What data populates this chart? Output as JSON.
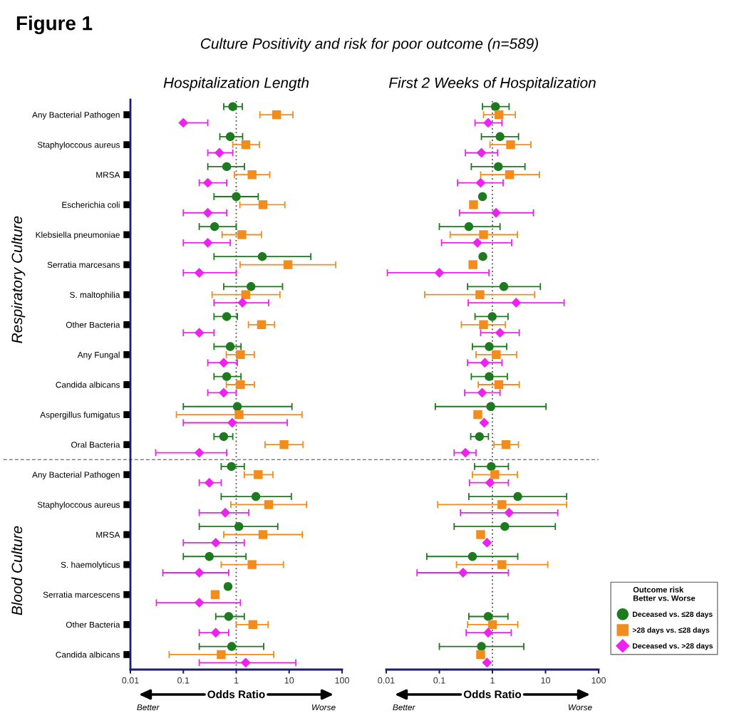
{
  "chart_data": [
    {
      "type": "scatter",
      "orientation": "horizontal",
      "title": "Hospitalization Length",
      "xlabel": "Odds Ratio",
      "log": "x",
      "xlim": [
        0.01,
        100
      ],
      "xticks": [
        0.01,
        0.1,
        1,
        10,
        100
      ],
      "grid": false,
      "legend": false,
      "annotations": [
        "Figure 1",
        "Culture Positivity and risk for poor outcome (n=589)",
        "Respiratory Culture",
        "Blood Culture",
        "Better",
        "Worse"
      ],
      "categories": [
        "Any Bacterial Pathogen",
        "Staphyloccous aureus",
        "MRSA",
        "Escherichia coli",
        "Klebsiella pneumoniae",
        "Serratia marcesans",
        "S. maltophilia",
        "Other Bacteria",
        "Any Fungal",
        "Candida albicans",
        "Aspergillus fumigatus",
        "Oral Bacteria",
        "Any Bacterial Pathogen",
        "Staphyloccous aureus",
        "MRSA",
        "S. haemolyticus",
        "Serratia marcescens",
        "Other Bacteria",
        "Candida albicans"
      ],
      "ref_lines": [
        {
          "axis": "x",
          "value": 1,
          "color": "#555555",
          "line_style": "dotted"
        }
      ],
      "series": [
        {
          "color": "#1e7a1e",
          "marker": "circle",
          "values": [
            0.86,
            0.77,
            0.66,
            1.0,
            0.39,
            3.1,
            1.9,
            0.66,
            0.77,
            0.66,
            1.05,
            0.58,
            0.81,
            2.35,
            1.12,
            0.31,
            0.7,
            0.72,
            0.82
          ],
          "errors": [
            [
              0.58,
              1.3
            ],
            [
              0.49,
              1.32
            ],
            [
              0.29,
              1.43
            ],
            [
              0.38,
              2.6
            ],
            [
              0.2,
              1.0
            ],
            [
              0.38,
              25.7
            ],
            [
              0.58,
              7.5
            ],
            [
              0.38,
              1.05
            ],
            [
              0.38,
              1.23
            ],
            [
              0.38,
              1.23
            ],
            [
              0.1,
              11.3
            ],
            [
              0.38,
              0.86
            ],
            [
              0.52,
              1.42
            ],
            [
              0.52,
              11
            ],
            [
              0.2,
              6.1
            ],
            [
              0.1,
              1.53
            ],
            [
              0.63,
              0.7
            ],
            [
              0.41,
              1.42
            ],
            [
              0.2,
              3.3
            ]
          ]
        },
        {
          "color": "#f28c1c",
          "marker": "square",
          "values": [
            5.8,
            1.51,
            1.99,
            3.2,
            1.28,
            9.5,
            1.51,
            3.0,
            1.2,
            1.2,
            1.13,
            8.0,
            2.6,
            4.1,
            3.2,
            1.99,
            0.4,
            2.06,
            0.52
          ],
          "errors": [
            [
              2.8,
              11.8
            ],
            [
              0.86,
              2.74
            ],
            [
              0.92,
              4.3
            ],
            [
              1.17,
              8.3
            ],
            [
              0.54,
              3.0
            ],
            [
              1.18,
              76
            ],
            [
              0.35,
              6.7
            ],
            [
              1.7,
              5.3
            ],
            [
              0.65,
              2.2
            ],
            [
              0.65,
              2.2
            ],
            [
              0.074,
              17.5
            ],
            [
              3.5,
              18.3
            ],
            [
              1.42,
              4.95
            ],
            [
              0.79,
              21.3
            ],
            [
              0.58,
              17.7
            ],
            [
              0.52,
              7.8
            ],
            null,
            [
              1.0,
              4.0
            ],
            [
              0.054,
              5.1
            ]
          ]
        },
        {
          "color": "#ee22ee",
          "marker": "diamond",
          "values": [
            0.1,
            0.48,
            0.29,
            0.29,
            0.29,
            0.2,
            1.31,
            0.2,
            0.58,
            0.58,
            0.84,
            0.2,
            0.31,
            0.62,
            0.41,
            0.2,
            0.2,
            0.41,
            1.51
          ],
          "errors": [
            [
              0.1,
              0.29
            ],
            [
              0.29,
              0.86
            ],
            [
              0.2,
              0.66
            ],
            [
              0.1,
              0.66
            ],
            [
              0.1,
              0.77
            ],
            [
              0.1,
              1.0
            ],
            [
              0.38,
              4.1
            ],
            [
              0.1,
              0.38
            ],
            [
              0.29,
              1.05
            ],
            [
              0.29,
              1.0
            ],
            [
              0.1,
              9.2
            ],
            [
              0.03,
              0.66
            ],
            [
              0.2,
              0.52
            ],
            [
              0.2,
              1.73
            ],
            [
              0.1,
              1.42
            ],
            [
              0.041,
              0.72
            ],
            [
              0.031,
              1.2
            ],
            [
              0.2,
              0.72
            ],
            [
              0.2,
              13.4
            ]
          ]
        }
      ]
    },
    {
      "type": "scatter",
      "orientation": "horizontal",
      "title": "First 2 Weeks of Hospitalization",
      "xlabel": "Odds Ratio",
      "log": "x",
      "xlim": [
        0.01,
        100
      ],
      "xticks": [
        0.01,
        0.1,
        1,
        10,
        100
      ],
      "grid": false,
      "legend": "bottom right",
      "legend_title": "Outcome risk\nBetter vs. Worse",
      "tick_labels": "x",
      "annotations": [
        "Better",
        "Worse"
      ],
      "categories": [
        null,
        null,
        null,
        null,
        null,
        null,
        null,
        null,
        null,
        null,
        null,
        null,
        null,
        null,
        null,
        null,
        null,
        null,
        null
      ],
      "ref_lines": [
        {
          "axis": "x",
          "value": 1,
          "color": "#555555",
          "line_style": "dotted"
        }
      ],
      "series": [
        {
          "name": "Deceased vs. ≤28 days",
          "color": "#1e7a1e",
          "marker": "circle",
          "values": [
            1.14,
            1.39,
            1.29,
            0.65,
            0.36,
            0.66,
            1.64,
            0.99,
            0.87,
            0.87,
            0.93,
            0.57,
            0.95,
            3.0,
            1.71,
            0.42,
            null,
            0.83,
            0.62
          ],
          "errors": [
            [
              0.65,
              2.06
            ],
            [
              0.62,
              3.1
            ],
            [
              0.4,
              4.1
            ],
            null,
            [
              0.1,
              1.39
            ],
            null,
            [
              0.34,
              8.0
            ],
            [
              0.47,
              1.97
            ],
            [
              0.42,
              1.86
            ],
            [
              0.4,
              1.91
            ],
            [
              0.084,
              10.2
            ],
            [
              0.39,
              0.84
            ],
            [
              0.46,
              2.0
            ],
            [
              0.36,
              25
            ],
            [
              0.19,
              15.3
            ],
            [
              0.058,
              3.0
            ],
            null,
            [
              0.36,
              1.96
            ],
            [
              0.1,
              3.9
            ]
          ]
        },
        {
          "name": ">28 days vs. ≤28 days",
          "color": "#f28c1c",
          "marker": "square",
          "values": [
            1.33,
            2.2,
            2.1,
            0.44,
            0.68,
            0.43,
            0.58,
            0.68,
            1.18,
            1.32,
            0.53,
            1.8,
            1.11,
            1.51,
            0.6,
            1.51,
            null,
            1.0,
            0.6
          ],
          "errors": [
            [
              0.68,
              2.7
            ],
            [
              0.9,
              5.3
            ],
            [
              0.6,
              7.7
            ],
            null,
            [
              0.16,
              2.95
            ],
            null,
            [
              0.053,
              6.25
            ],
            [
              0.26,
              1.76
            ],
            [
              0.49,
              2.86
            ],
            [
              0.54,
              3.2
            ],
            null,
            [
              1.07,
              3.1
            ],
            [
              0.42,
              2.95
            ],
            [
              0.093,
              25
            ],
            null,
            [
              0.21,
              11
            ],
            null,
            [
              0.34,
              3.0
            ],
            null
          ]
        },
        {
          "name": "Deceased vs. >28 days",
          "color": "#ee22ee",
          "marker": "diamond",
          "values": [
            0.83,
            0.62,
            0.6,
            1.17,
            0.52,
            0.1,
            2.8,
            1.39,
            0.72,
            0.64,
            0.7,
            0.31,
            0.9,
            2.06,
            0.79,
            0.28,
            null,
            0.83,
            0.79
          ],
          "errors": [
            [
              0.47,
              1.51
            ],
            [
              0.31,
              1.25
            ],
            [
              0.22,
              1.59
            ],
            [
              0.24,
              5.9
            ],
            [
              0.11,
              2.3
            ],
            [
              0.0105,
              0.86
            ],
            [
              0.35,
              22.4
            ],
            [
              0.6,
              3.2
            ],
            [
              0.34,
              1.51
            ],
            [
              0.3,
              1.39
            ],
            null,
            [
              0.19,
              0.49
            ],
            [
              0.37,
              2.0
            ],
            [
              0.25,
              17
            ],
            null,
            [
              0.038,
              2.0
            ],
            null,
            [
              0.32,
              2.26
            ],
            null
          ]
        }
      ]
    }
  ]
}
